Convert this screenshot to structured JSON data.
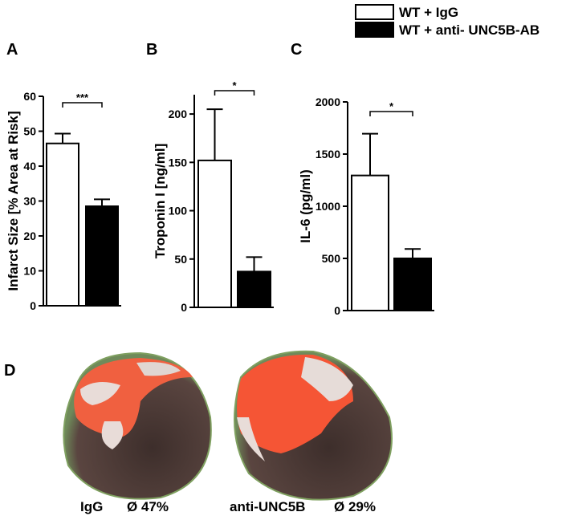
{
  "legend": [
    {
      "name": "WT + IgG",
      "color": "#ffffff"
    },
    {
      "name": "WT + anti- UNC5B-AB",
      "color": "#000000"
    }
  ],
  "chart_data": [
    {
      "type": "bar",
      "panel": "A",
      "y_label": "Infarct Size  [% Area at Risk]",
      "values": [
        46.5,
        28.5
      ],
      "errors": [
        2.8,
        2.0
      ],
      "significance": "***",
      "ylim": [
        0,
        60
      ],
      "yticks": [
        0,
        10,
        20,
        30,
        40,
        50,
        60
      ]
    },
    {
      "type": "bar",
      "panel": "B",
      "y_label": "Troponin I [ng/ml]",
      "values": [
        152,
        37
      ],
      "errors": [
        53,
        15
      ],
      "significance": "*",
      "ylim": [
        0,
        220
      ],
      "yticks": [
        0,
        50,
        100,
        150,
        200
      ]
    },
    {
      "type": "bar",
      "panel": "C",
      "y_label": "IL-6 (pg/ml)",
      "values": [
        1295,
        500
      ],
      "errors": [
        400,
        90
      ],
      "significance": "*",
      "ylim": [
        0,
        2000
      ],
      "yticks": [
        0,
        500,
        1000,
        1500,
        2000
      ]
    }
  ],
  "images": {
    "panel": "D",
    "items": [
      {
        "label": "IgG",
        "value_label": "Ø 47%"
      },
      {
        "label": "anti-UNC5B",
        "value_label": "Ø 29%"
      }
    ]
  }
}
